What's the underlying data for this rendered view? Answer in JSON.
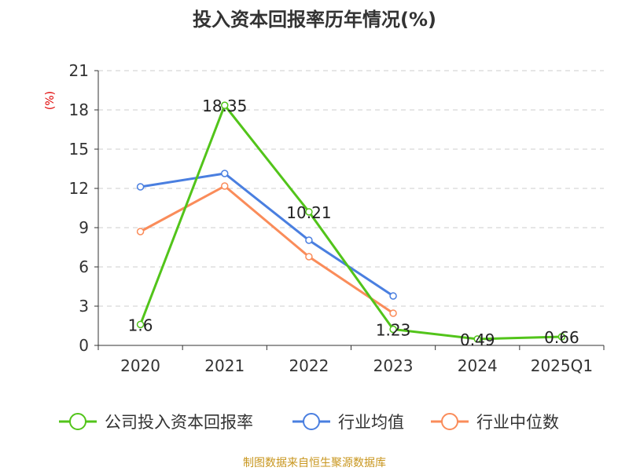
{
  "chart_data": {
    "type": "line",
    "title": "投入资本回报率历年情况(%)",
    "ylabel": "(%)",
    "xlabel": "",
    "categories": [
      "2020",
      "2021",
      "2022",
      "2023",
      "2024",
      "2025Q1"
    ],
    "ylim": [
      0,
      21
    ],
    "yticks": [
      0,
      3,
      6,
      9,
      12,
      15,
      18,
      21
    ],
    "grid": true,
    "legend_position": "bottom",
    "series": [
      {
        "name": "公司投入资本回报率",
        "color": "#52c41a",
        "values": [
          1.6,
          18.35,
          10.21,
          1.23,
          0.49,
          0.66
        ],
        "labels": [
          "1.6",
          "18.35",
          "10.21",
          "1.23",
          "0.49",
          "0.66"
        ]
      },
      {
        "name": "行业均值",
        "color": "#4a7fe0",
        "values": [
          12.12,
          13.14,
          8.04,
          3.78,
          null,
          null
        ]
      },
      {
        "name": "行业中位数",
        "color": "#fa8c5a",
        "values": [
          8.7,
          12.18,
          6.78,
          2.46,
          null,
          null
        ]
      }
    ]
  },
  "footer": "制图数据来自恒生聚源数据库"
}
